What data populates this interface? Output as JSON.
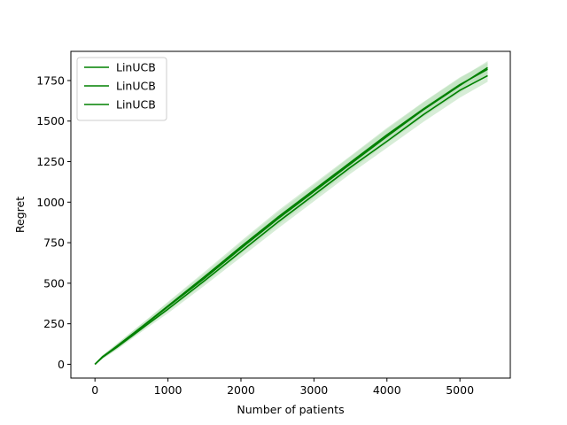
{
  "chart_data": {
    "type": "line",
    "title": "",
    "xlabel": "Number of patients",
    "ylabel": "Regret",
    "xlim": [
      -330,
      5690
    ],
    "ylim": [
      -85,
      1930
    ],
    "x_ticks": [
      0,
      1000,
      2000,
      3000,
      4000,
      5000
    ],
    "y_ticks": [
      0,
      250,
      500,
      750,
      1000,
      1250,
      1500,
      1750
    ],
    "grid": false,
    "legend_position": "upper-left",
    "band_color": "#b7dfb7",
    "series": [
      {
        "name": "LinUCB",
        "color": "#008000",
        "x": [
          0,
          100,
          300,
          500,
          700,
          1000,
          1500,
          2000,
          2500,
          3000,
          3500,
          4000,
          4500,
          5000,
          5380
        ],
        "y": [
          0,
          45,
          110,
          180,
          250,
          355,
          530,
          715,
          895,
          1065,
          1235,
          1405,
          1570,
          1720,
          1830
        ],
        "band_low": [
          0,
          35,
          95,
          162,
          230,
          330,
          500,
          680,
          855,
          1025,
          1195,
          1362,
          1525,
          1675,
          1790
        ],
        "band_high": [
          0,
          55,
          125,
          198,
          272,
          380,
          560,
          750,
          935,
          1105,
          1280,
          1450,
          1615,
          1765,
          1870
        ]
      },
      {
        "name": "LinUCB",
        "color": "#008000",
        "x": [
          0,
          100,
          300,
          500,
          700,
          1000,
          1500,
          2000,
          2500,
          3000,
          3500,
          4000,
          4500,
          5000,
          5380
        ],
        "y": [
          0,
          44,
          112,
          182,
          252,
          360,
          540,
          725,
          905,
          1075,
          1245,
          1415,
          1575,
          1725,
          1820
        ],
        "band_low": [
          0,
          34,
          97,
          165,
          233,
          335,
          510,
          690,
          865,
          1035,
          1205,
          1372,
          1532,
          1680,
          1782
        ],
        "band_high": [
          0,
          54,
          127,
          200,
          272,
          385,
          570,
          760,
          945,
          1115,
          1285,
          1458,
          1618,
          1770,
          1860
        ]
      },
      {
        "name": "LinUCB",
        "color": "#008000",
        "x": [
          0,
          100,
          300,
          500,
          700,
          1000,
          1500,
          2000,
          2500,
          3000,
          3500,
          4000,
          4500,
          5000,
          5380
        ],
        "y": [
          0,
          42,
          105,
          172,
          240,
          340,
          515,
          695,
          875,
          1045,
          1215,
          1375,
          1540,
          1690,
          1780
        ],
        "band_low": [
          0,
          32,
          90,
          155,
          220,
          315,
          485,
          660,
          835,
          1005,
          1175,
          1335,
          1495,
          1645,
          1742
        ],
        "band_high": [
          0,
          52,
          120,
          190,
          262,
          365,
          545,
          730,
          915,
          1085,
          1255,
          1418,
          1585,
          1735,
          1820
        ]
      }
    ]
  }
}
